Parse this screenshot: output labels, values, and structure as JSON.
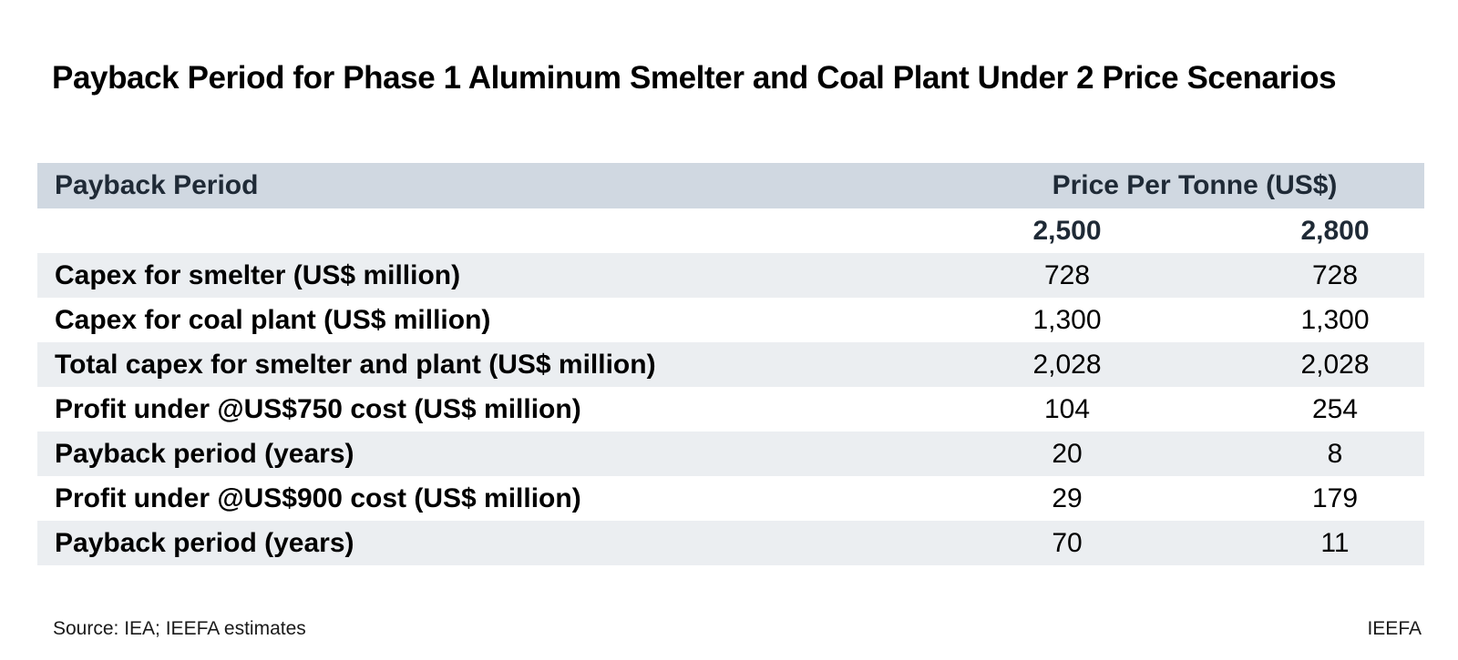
{
  "title": "Payback Period for Phase 1 Aluminum Smelter and Coal Plant Under 2 Price Scenarios",
  "table": {
    "header_label": "Payback Period",
    "header_span": "Price Per Tonne (US$)",
    "price_columns": [
      "2,500",
      "2,800"
    ],
    "rows": [
      {
        "label": "Capex for smelter (US$ million)",
        "values": [
          "728",
          "728"
        ]
      },
      {
        "label": "Capex for coal plant (US$ million)",
        "values": [
          "1,300",
          "1,300"
        ]
      },
      {
        "label": "Total capex for smelter and plant (US$ million)",
        "values": [
          "2,028",
          "2,028"
        ]
      },
      {
        "label": "Profit under @US$750 cost (US$ million)",
        "values": [
          "104",
          "254"
        ]
      },
      {
        "label": "Payback period (years)",
        "values": [
          "20",
          "8"
        ]
      },
      {
        "label": "Profit under @US$900 cost (US$ million)",
        "values": [
          "29",
          "179"
        ]
      },
      {
        "label": "Payback period (years)",
        "values": [
          "70",
          "11"
        ]
      }
    ]
  },
  "footer": {
    "source": "Source: IEA; IEEFA estimates",
    "brand": "IEEFA"
  },
  "colors": {
    "header_band": "#d0d8e1",
    "shaded_row": "#ebeef1",
    "header_text": "#1f2a36"
  }
}
